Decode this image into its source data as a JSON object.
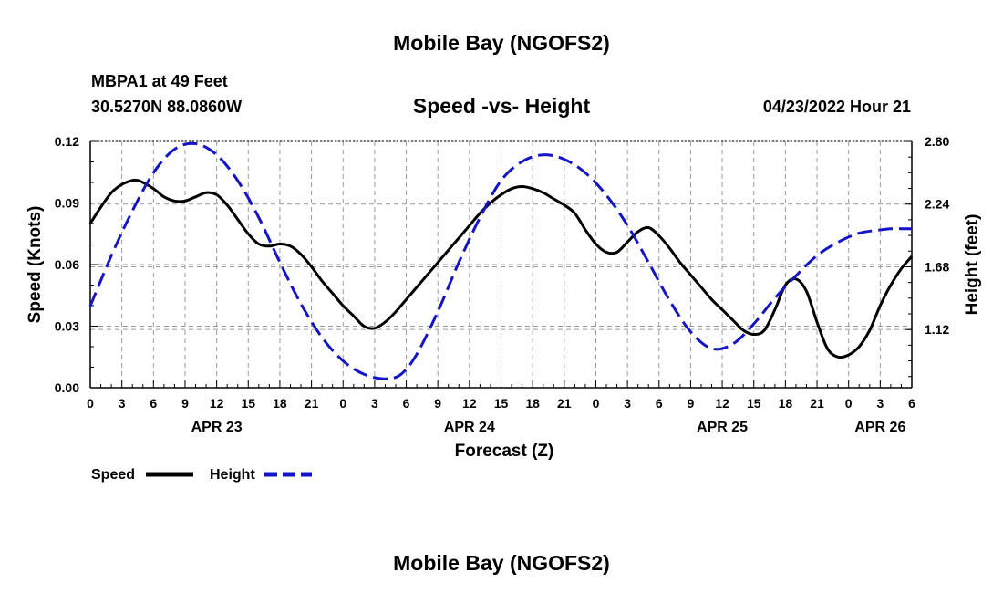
{
  "header": {
    "title_top": "Mobile Bay (NGOFS2)",
    "station": "MBPA1 at 49 Feet",
    "coords": "30.5270N  88.0860W",
    "chart_title": "Speed -vs- Height",
    "datetime": "04/23/2022 Hour 21",
    "title_bottom": "Mobile Bay (NGOFS2)"
  },
  "chart_data": {
    "type": "line",
    "xlabel": "Forecast (Z)",
    "ylabel_left": "Speed (Knots)",
    "ylabel_right": "Height (feet)",
    "x_unit": "hours from APR 23 00Z",
    "xlim": [
      0,
      78
    ],
    "ylim_left": [
      0,
      0.12
    ],
    "ylim_right": [
      0.6,
      2.8
    ],
    "left_ticks": [
      "0.00",
      "0.03",
      "0.06",
      "0.09",
      "0.12"
    ],
    "right_ticks": [
      "1.12",
      "1.68",
      "2.24",
      "2.80"
    ],
    "x_tick_labels": [
      "0",
      "3",
      "6",
      "9",
      "12",
      "15",
      "18",
      "21",
      "0",
      "3",
      "6",
      "9",
      "12",
      "15",
      "18",
      "21",
      "0",
      "3",
      "6",
      "9",
      "12",
      "15",
      "18",
      "21",
      "0",
      "3",
      "6"
    ],
    "date_labels": [
      {
        "label": "APR 23",
        "hour": 12
      },
      {
        "label": "APR 24",
        "hour": 36
      },
      {
        "label": "APR 25",
        "hour": 60
      },
      {
        "label": "APR 26",
        "hour": 75
      }
    ],
    "grid": true,
    "legend_position": "bottom-left",
    "series": [
      {
        "name": "Speed",
        "axis": "left",
        "color": "#000000",
        "style": "solid",
        "x": [
          0,
          1,
          2,
          3,
          4,
          4.5,
          5,
          6,
          7,
          8,
          9,
          10,
          11,
          12,
          13,
          14,
          15,
          16,
          17,
          18,
          19,
          20,
          21,
          22,
          23,
          24,
          25,
          26,
          27,
          28,
          29,
          29.5,
          30,
          31,
          32,
          33,
          34,
          35,
          36,
          37,
          38,
          39,
          40,
          41,
          42,
          43,
          44,
          45,
          46,
          47,
          48,
          49,
          50,
          51,
          52,
          53,
          54,
          55,
          56,
          57,
          58,
          59,
          60,
          61,
          62,
          63,
          64,
          65,
          66,
          67,
          68,
          69,
          70,
          71,
          72,
          73,
          74,
          75,
          76,
          77,
          78
        ],
        "y": [
          0.08,
          0.088,
          0.095,
          0.099,
          0.101,
          0.101,
          0.1,
          0.097,
          0.093,
          0.091,
          0.091,
          0.093,
          0.095,
          0.094,
          0.089,
          0.082,
          0.075,
          0.07,
          0.069,
          0.07,
          0.069,
          0.065,
          0.059,
          0.052,
          0.046,
          0.04,
          0.035,
          0.03,
          0.029,
          0.032,
          0.037,
          0.04,
          0.043,
          0.049,
          0.055,
          0.061,
          0.067,
          0.073,
          0.079,
          0.085,
          0.09,
          0.094,
          0.097,
          0.098,
          0.097,
          0.095,
          0.092,
          0.089,
          0.085,
          0.077,
          0.07,
          0.066,
          0.066,
          0.071,
          0.076,
          0.078,
          0.074,
          0.068,
          0.061,
          0.055,
          0.049,
          0.043,
          0.038,
          0.033,
          0.028,
          0.026,
          0.028,
          0.038,
          0.05,
          0.053,
          0.047,
          0.032,
          0.019,
          0.015,
          0.016,
          0.02,
          0.028,
          0.04,
          0.05,
          0.058,
          0.064
        ]
      },
      {
        "name": "Height",
        "axis": "right",
        "color": "#1515c8",
        "style": "dashed",
        "x": [
          0,
          2,
          4,
          6,
          8,
          10,
          12,
          14,
          16,
          18,
          20,
          22,
          24,
          26,
          28,
          29.5,
          31,
          33,
          35,
          37,
          39,
          41,
          43,
          45,
          47,
          49,
          51,
          53,
          55,
          57,
          59,
          61,
          63,
          65,
          67,
          69,
          71,
          73,
          75,
          76,
          77,
          78
        ],
        "y": [
          1.33,
          1.78,
          2.18,
          2.52,
          2.73,
          2.78,
          2.68,
          2.45,
          2.12,
          1.72,
          1.35,
          1.05,
          0.84,
          0.72,
          0.68,
          0.72,
          0.9,
          1.28,
          1.72,
          2.12,
          2.45,
          2.62,
          2.68,
          2.64,
          2.52,
          2.32,
          2.05,
          1.72,
          1.38,
          1.1,
          0.95,
          0.99,
          1.17,
          1.4,
          1.6,
          1.78,
          1.9,
          1.98,
          2.01,
          2.02,
          2.02,
          2.02
        ]
      }
    ]
  }
}
